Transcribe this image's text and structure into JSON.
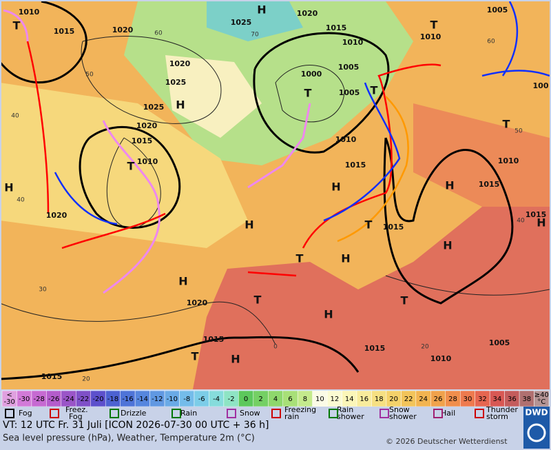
{
  "map": {
    "pressure_labels": [
      "1010",
      "1015",
      "1020",
      "1020",
      "1025",
      "1025",
      "1025",
      "1020",
      "1015",
      "1010",
      "1005",
      "1000",
      "1005",
      "1010",
      "1005",
      "1010",
      "1015",
      "1015",
      "1015",
      "1015",
      "1010",
      "100",
      "1020",
      "1015",
      "1010",
      "1020",
      "1020",
      "1015",
      "1015",
      "1010",
      "1005",
      "1015"
    ],
    "highs": [
      "H",
      "H",
      "H",
      "H",
      "H",
      "H",
      "H",
      "H",
      "H",
      "H",
      "H",
      "H"
    ],
    "lows": [
      "T",
      "T",
      "T",
      "T",
      "T",
      "T",
      "T",
      "T",
      "T",
      "T",
      "T"
    ],
    "grid_labels": [
      "60",
      "70",
      "50",
      "40",
      "40",
      "30",
      "20",
      "0",
      "20",
      "40",
      "50",
      "60"
    ]
  },
  "colorbar": {
    "labels": [
      "<\n-30",
      "-30",
      "-28",
      "-26",
      "-24",
      "-22",
      "-20",
      "-18",
      "-16",
      "-14",
      "-12",
      "-10",
      "-8",
      "-6",
      "-4",
      "-2",
      "0",
      "2",
      "4",
      "6",
      "8",
      "10",
      "12",
      "14",
      "16",
      "18",
      "20",
      "22",
      "24",
      "26",
      "28",
      "30",
      "32",
      "34",
      "36",
      "38",
      "≥40\n°C"
    ],
    "colors": [
      "#e0a0e0",
      "#d27ad8",
      "#c66ad2",
      "#b45ccc",
      "#9a55c8",
      "#7f50c8",
      "#5c50cc",
      "#4c62d2",
      "#4e74d8",
      "#5686de",
      "#6098e2",
      "#6aaae6",
      "#74bcea",
      "#7ccde8",
      "#86dcdc",
      "#8ee4c4",
      "#5cc85c",
      "#74d064",
      "#8ed86c",
      "#a8e078",
      "#c4ea8c",
      "#fbfbe6",
      "#fbfbd2",
      "#fbf6b8",
      "#f8ec9c",
      "#f6e082",
      "#f4d26a",
      "#f2c45a",
      "#f2b450",
      "#f0a24c",
      "#f08e4c",
      "#ee7a4e",
      "#e66650",
      "#d85854",
      "#c45c5c",
      "#b07070",
      "#b49494"
    ]
  },
  "legend": [
    "Fog",
    "Freez.",
    "Fog",
    "Drizzle",
    "Rain",
    "Snow",
    "Freezing",
    "rain",
    "Rain",
    "shower",
    "Snow",
    "shower",
    "Hail",
    "Thunder",
    "storm"
  ],
  "footer": {
    "valid_time": "VT: 12 UTC Fr.  31 Juli [ICON 2026-07-30  00 UTC + 36 h]",
    "subtitle": "Sea level pressure (hPa), Weather, Temperature 2m (°C)",
    "copyright": "© 2026 Deutscher Wetterdienst",
    "logo": "DWD"
  }
}
